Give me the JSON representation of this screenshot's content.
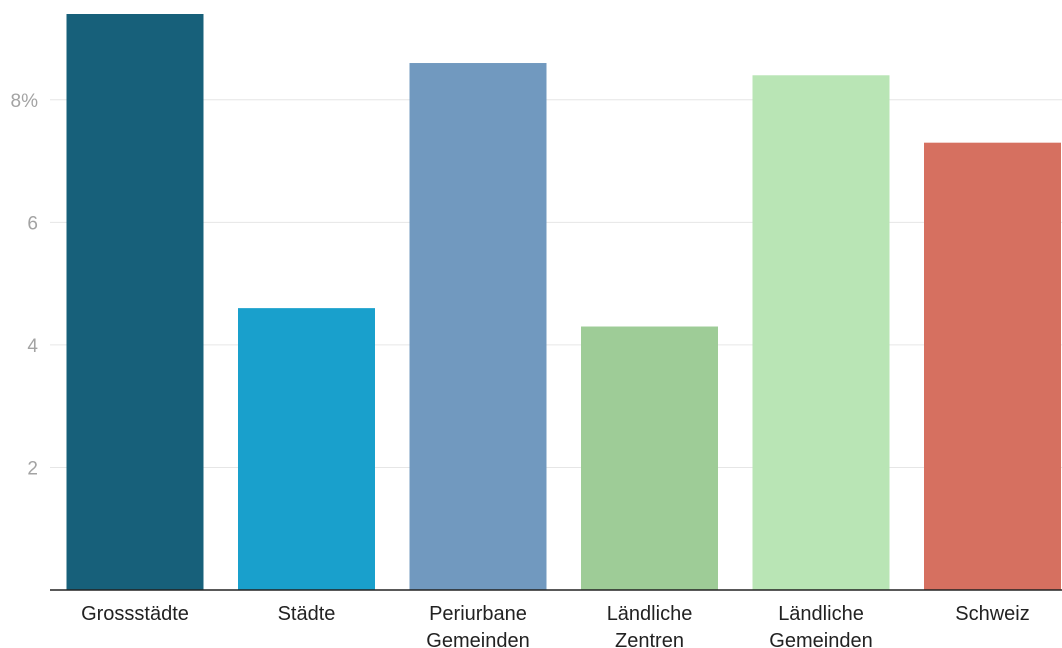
{
  "chart_data": {
    "type": "bar",
    "categories": [
      [
        "Grossstädte"
      ],
      [
        "Städte"
      ],
      [
        "Periurbane",
        "Gemeinden"
      ],
      [
        "Ländliche",
        "Zentren"
      ],
      [
        "Ländliche",
        "Gemeinden"
      ],
      [
        "Schweiz"
      ]
    ],
    "values": [
      9.4,
      4.6,
      8.6,
      4.3,
      8.4,
      7.3
    ],
    "colors": [
      "#17607a",
      "#19a0cc",
      "#7199bf",
      "#9ecc97",
      "#b9e5b5",
      "#d67060"
    ],
    "y_ticks": [
      {
        "value": 2,
        "label": "2"
      },
      {
        "value": 4,
        "label": "4"
      },
      {
        "value": 6,
        "label": "6"
      },
      {
        "value": 8,
        "label": "8%"
      }
    ],
    "ylim": [
      0,
      9.4
    ],
    "grid": true
  }
}
